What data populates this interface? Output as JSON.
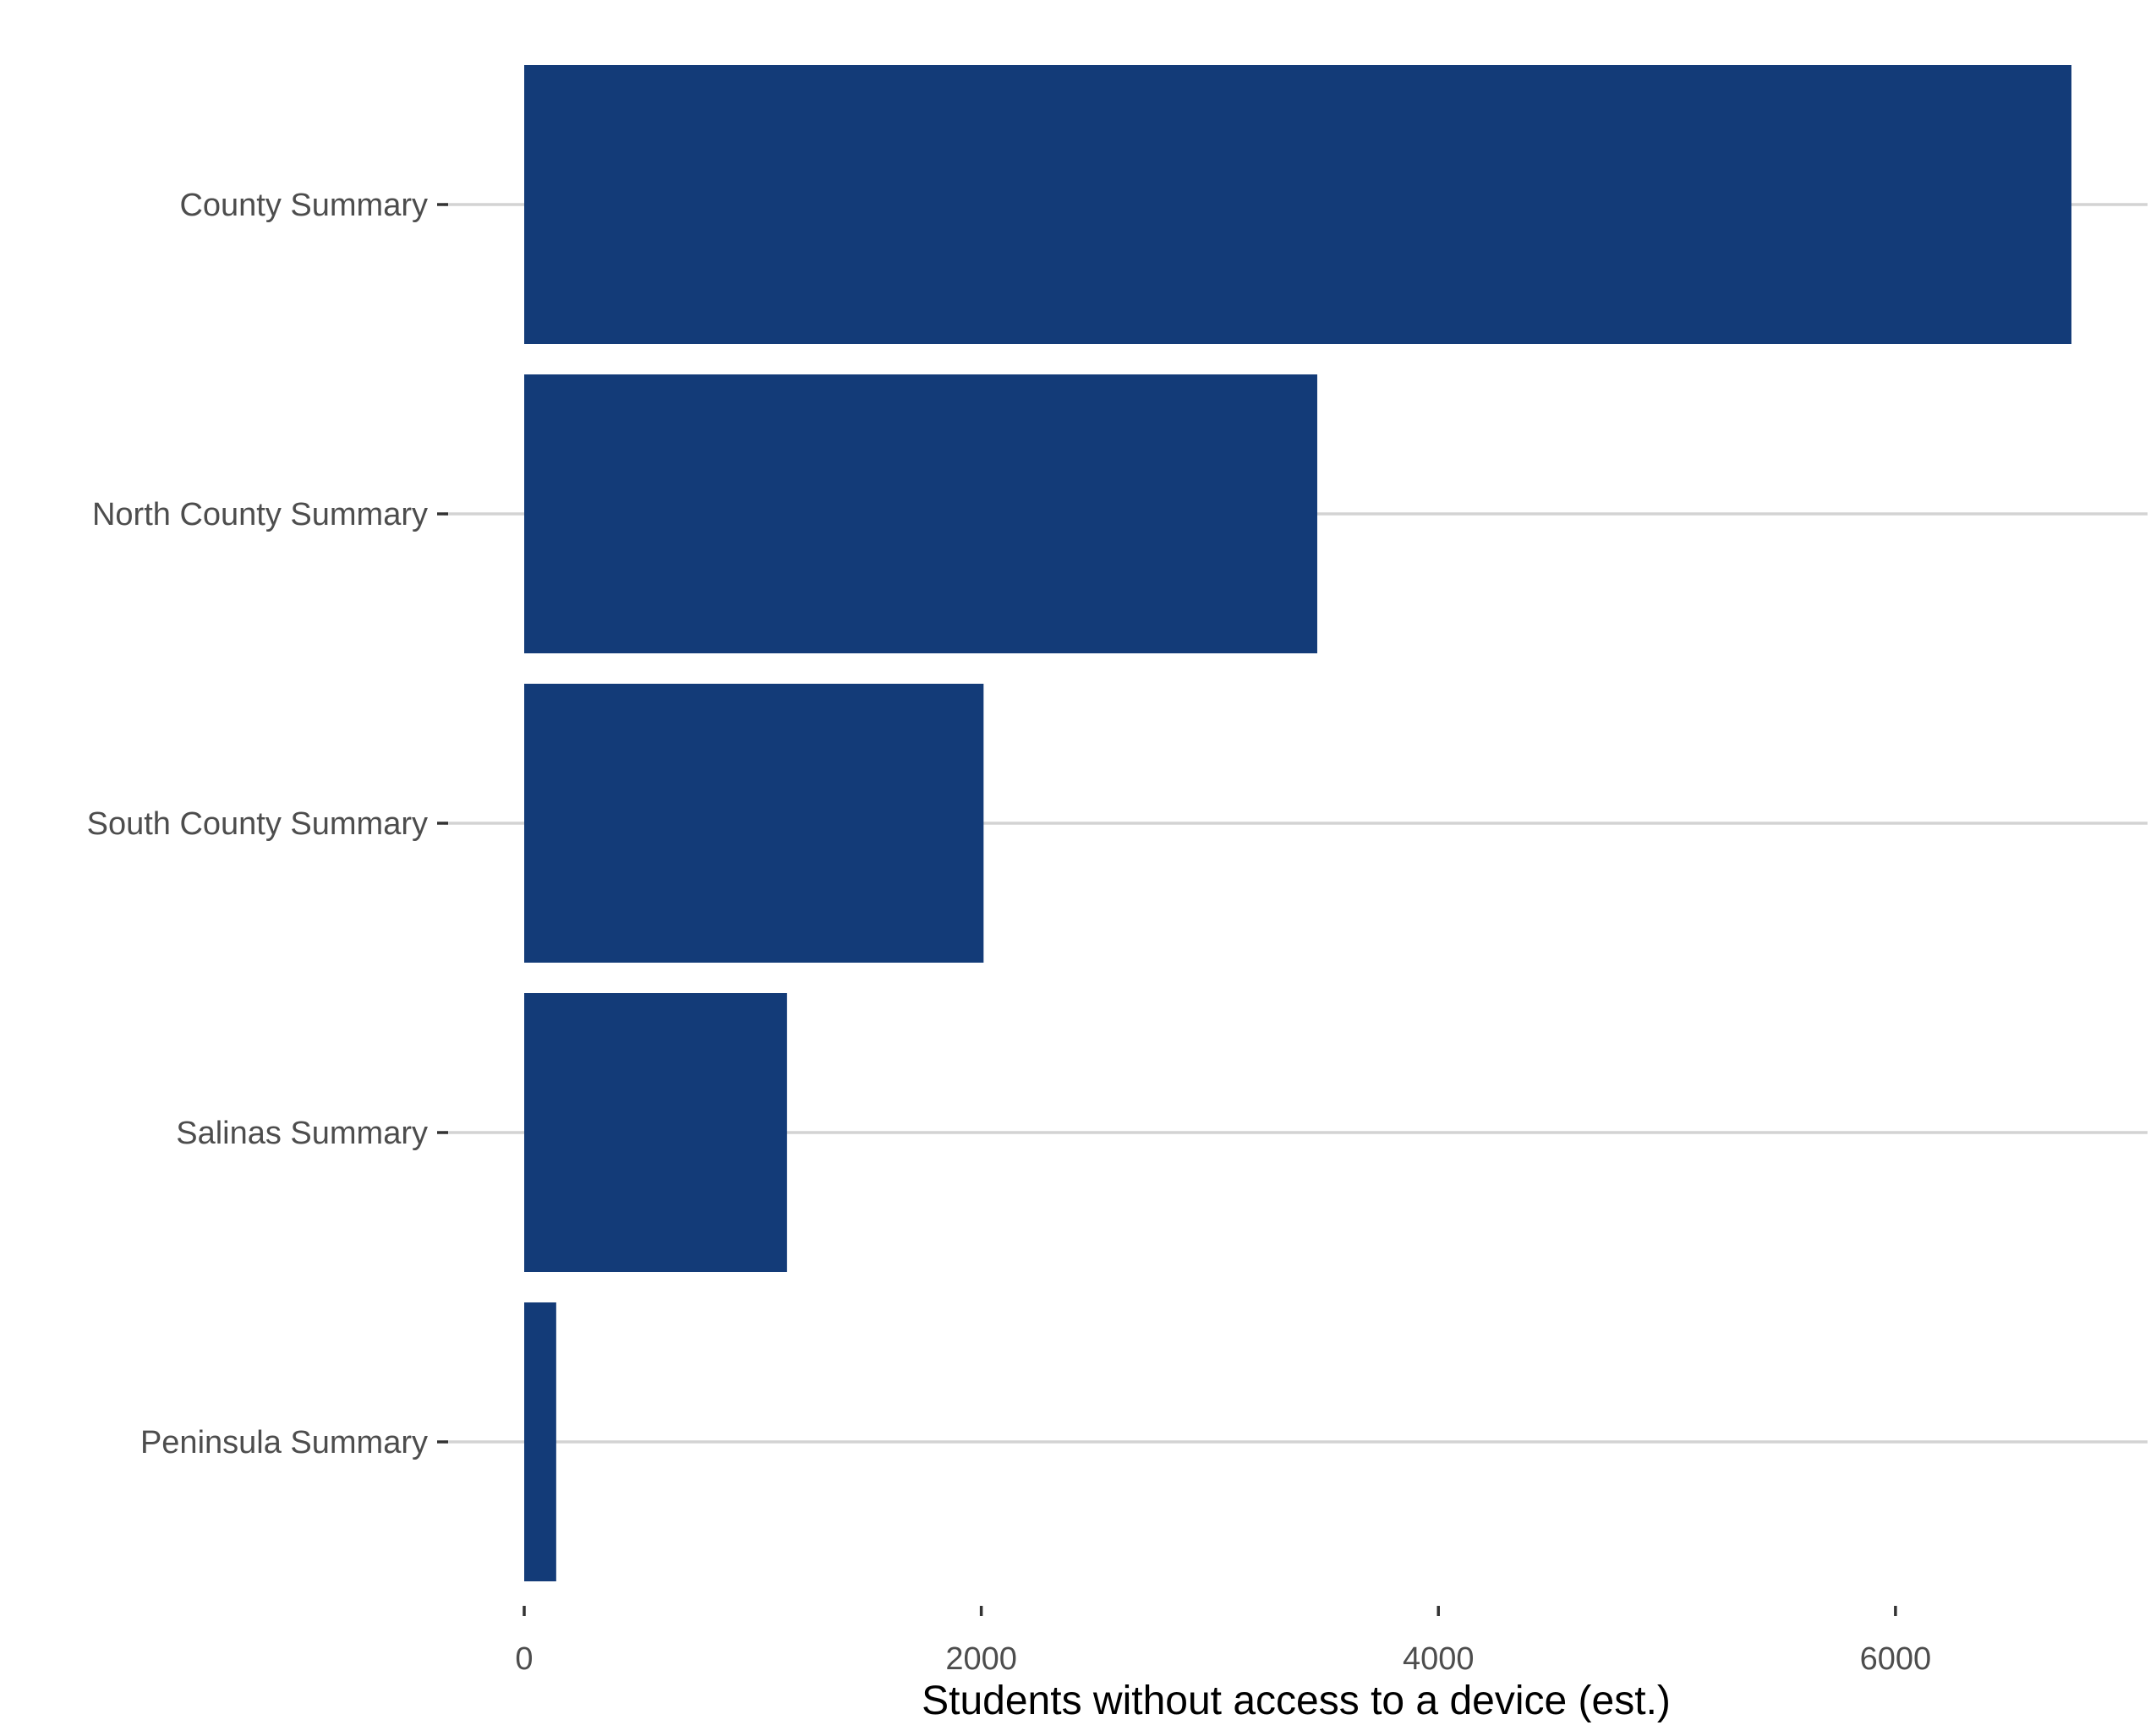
{
  "chart_data": {
    "type": "bar",
    "orientation": "horizontal",
    "categories": [
      "County Summary",
      "North County Summary",
      "South County Summary",
      "Salinas Summary",
      "Peninsula Summary"
    ],
    "values": [
      6770,
      3470,
      2010,
      1150,
      140
    ],
    "xlabel": "Students without access to a device (est.)",
    "ylabel": "",
    "xlim": [
      0,
      7100
    ],
    "xticks": [
      "0",
      "2000",
      "4000",
      "6000"
    ],
    "xtick_values": [
      0,
      2000,
      4000,
      6000
    ],
    "grid": "horizontal major lines only",
    "legend": "none",
    "colors": {
      "bar": "#133b78",
      "grid": "#d3d3d3",
      "tick": "#333333",
      "label": "#4d4d4d",
      "title": "#000000"
    }
  }
}
